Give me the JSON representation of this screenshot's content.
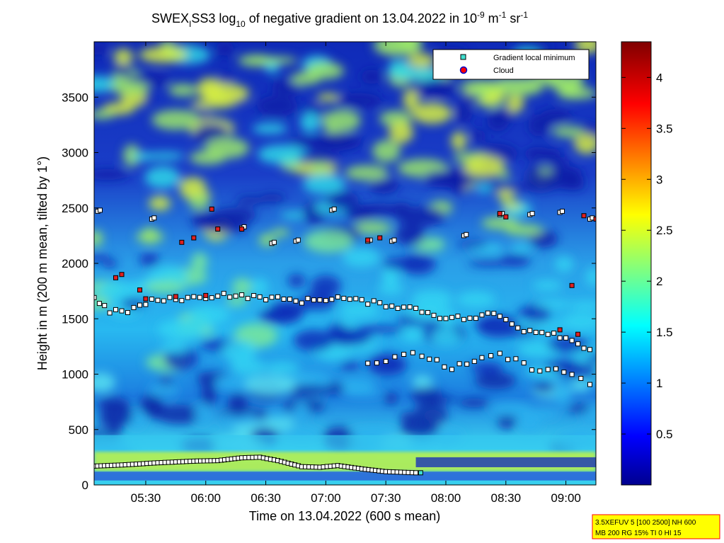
{
  "chart_data": {
    "type": "heatmap",
    "title": {
      "prefix": "SWEX",
      "sub_i": "I",
      "after_i": "SS3 log",
      "sub_10": "10",
      "main": " of negative gradient on 13.04.2022 in 10",
      "sup_1": "-9",
      "unit_m": " m",
      "sup_2": "-1",
      "unit_sr": " sr",
      "sup_3": "-1"
    },
    "xlabel": "Time on 13.04.2022 (600 s mean)",
    "ylabel": "Height in m (200 m mean, tilted by 1°)",
    "x_ticks": [
      "05:30",
      "06:00",
      "06:30",
      "07:00",
      "07:30",
      "08:00",
      "08:30",
      "09:00"
    ],
    "x_tick_hours": [
      5.5,
      6.0,
      6.5,
      7.0,
      7.5,
      8.0,
      8.5,
      9.0
    ],
    "xlim_hours": [
      5.07,
      9.25
    ],
    "y_ticks": [
      "0",
      "500",
      "1000",
      "1500",
      "2000",
      "2500",
      "3000",
      "3500"
    ],
    "y_tick_values": [
      0,
      500,
      1000,
      1500,
      2000,
      2500,
      3000,
      3500
    ],
    "ylim": [
      0,
      4000
    ],
    "colorbar_ticks": [
      "0.5",
      "1",
      "1.5",
      "2",
      "2.5",
      "3",
      "3.5",
      "4"
    ],
    "colorbar_tick_values": [
      0.5,
      1.0,
      1.5,
      2.0,
      2.5,
      3.0,
      3.5,
      4.0
    ],
    "clim": [
      0,
      4.35
    ],
    "colormap": "jet",
    "legend": {
      "position": "top-right",
      "entries": [
        {
          "label": "Gradient local minimum",
          "color": "#40e0d0",
          "marker": "square"
        },
        {
          "label": "Cloud",
          "color": "#ff0000",
          "marker": "circle"
        }
      ]
    },
    "gradient_minima": {
      "boundary_layer_top": [
        [
          5.07,
          170
        ],
        [
          5.3,
          180
        ],
        [
          5.6,
          200
        ],
        [
          5.9,
          215
        ],
        [
          6.1,
          220
        ],
        [
          6.3,
          245
        ],
        [
          6.45,
          250
        ],
        [
          6.6,
          220
        ],
        [
          6.8,
          165
        ],
        [
          6.95,
          160
        ],
        [
          7.1,
          175
        ],
        [
          7.3,
          145
        ],
        [
          7.5,
          120
        ],
        [
          7.75,
          110
        ]
      ],
      "layer_1700": [
        [
          5.07,
          1700
        ],
        [
          5.2,
          1560
        ],
        [
          5.35,
          1570
        ],
        [
          5.55,
          1660
        ],
        [
          5.75,
          1680
        ],
        [
          5.95,
          1690
        ],
        [
          6.15,
          1720
        ],
        [
          6.3,
          1700
        ],
        [
          6.5,
          1690
        ],
        [
          6.8,
          1660
        ],
        [
          7.1,
          1690
        ],
        [
          7.35,
          1650
        ],
        [
          7.55,
          1620
        ],
        [
          7.75,
          1590
        ],
        [
          7.95,
          1520
        ],
        [
          8.2,
          1500
        ],
        [
          8.4,
          1550
        ],
        [
          8.65,
          1400
        ],
        [
          8.9,
          1370
        ],
        [
          9.2,
          1230
        ]
      ],
      "layer_1100": [
        [
          7.35,
          1100
        ],
        [
          7.8,
          1180
        ],
        [
          8.05,
          1050
        ],
        [
          8.3,
          1120
        ],
        [
          8.45,
          1180
        ],
        [
          8.65,
          1080
        ],
        [
          8.85,
          1040
        ],
        [
          9.05,
          1000
        ],
        [
          9.2,
          920
        ]
      ],
      "layer_2300": [
        [
          5.1,
          2470
        ],
        [
          5.55,
          2400
        ],
        [
          6.3,
          2320
        ],
        [
          6.55,
          2180
        ],
        [
          6.75,
          2200
        ],
        [
          7.05,
          2480
        ],
        [
          7.35,
          2200
        ],
        [
          7.55,
          2200
        ],
        [
          8.15,
          2250
        ],
        [
          8.45,
          2440
        ],
        [
          8.7,
          2440
        ],
        [
          8.95,
          2460
        ],
        [
          9.2,
          2400
        ]
      ]
    },
    "clouds": [
      [
        5.25,
        1870
      ],
      [
        5.3,
        1900
      ],
      [
        5.45,
        1760
      ],
      [
        5.5,
        1680
      ],
      [
        5.75,
        1700
      ],
      [
        6.0,
        1710
      ],
      [
        5.8,
        2190
      ],
      [
        5.9,
        2230
      ],
      [
        6.1,
        2310
      ],
      [
        6.05,
        2490
      ],
      [
        6.3,
        2310
      ],
      [
        7.35,
        2210
      ],
      [
        7.45,
        2230
      ],
      [
        8.45,
        2450
      ],
      [
        8.5,
        2420
      ],
      [
        8.95,
        1400
      ],
      [
        9.1,
        1360
      ],
      [
        9.05,
        1800
      ],
      [
        9.15,
        2430
      ],
      [
        9.25,
        2400
      ]
    ],
    "info_box": [
      "3.5XEFUV 5 [100 2500] NH 600",
      "MB 200 RG 15% TI 0 HI 15"
    ]
  }
}
